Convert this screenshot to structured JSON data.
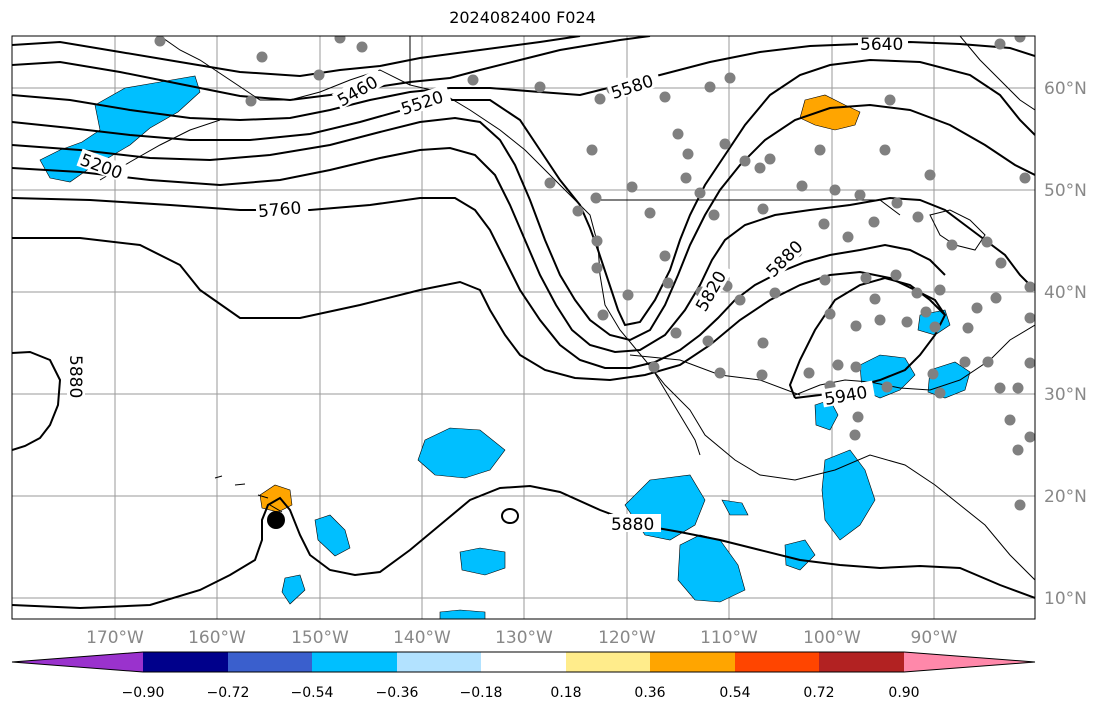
{
  "title": "2024082400 F024",
  "lon_labels": [
    "170°W",
    "160°W",
    "150°W",
    "140°W",
    "130°W",
    "120°W",
    "110°W",
    "100°W",
    "90°W"
  ],
  "lat_labels": [
    "60°N",
    "50°N",
    "40°N",
    "30°N",
    "20°N",
    "10°N"
  ],
  "contour_labels": [
    "5640",
    "5580",
    "5520",
    "5460",
    "5200",
    "5760",
    "5820",
    "5880",
    "5940",
    "5880",
    "5880"
  ],
  "colorbar": {
    "tick_labels": [
      "−0.90",
      "−0.72",
      "−0.54",
      "−0.36",
      "−0.18",
      "0.18",
      "0.36",
      "0.54",
      "0.72",
      "0.90"
    ],
    "colors": [
      "#9a32cd",
      "#00008b",
      "#3a5fcd",
      "#00bfff",
      "#b2e2ff",
      "#ffffff",
      "#ffec8b",
      "#ffa500",
      "#ff4500",
      "#b22222",
      "#ff88aa"
    ]
  },
  "colors": {
    "contour": "#000000",
    "negative_anomaly": "#00bfff",
    "positive_anomaly": "#ffa500",
    "station_dot": "#808080",
    "grid": "#9a9a9a"
  }
}
